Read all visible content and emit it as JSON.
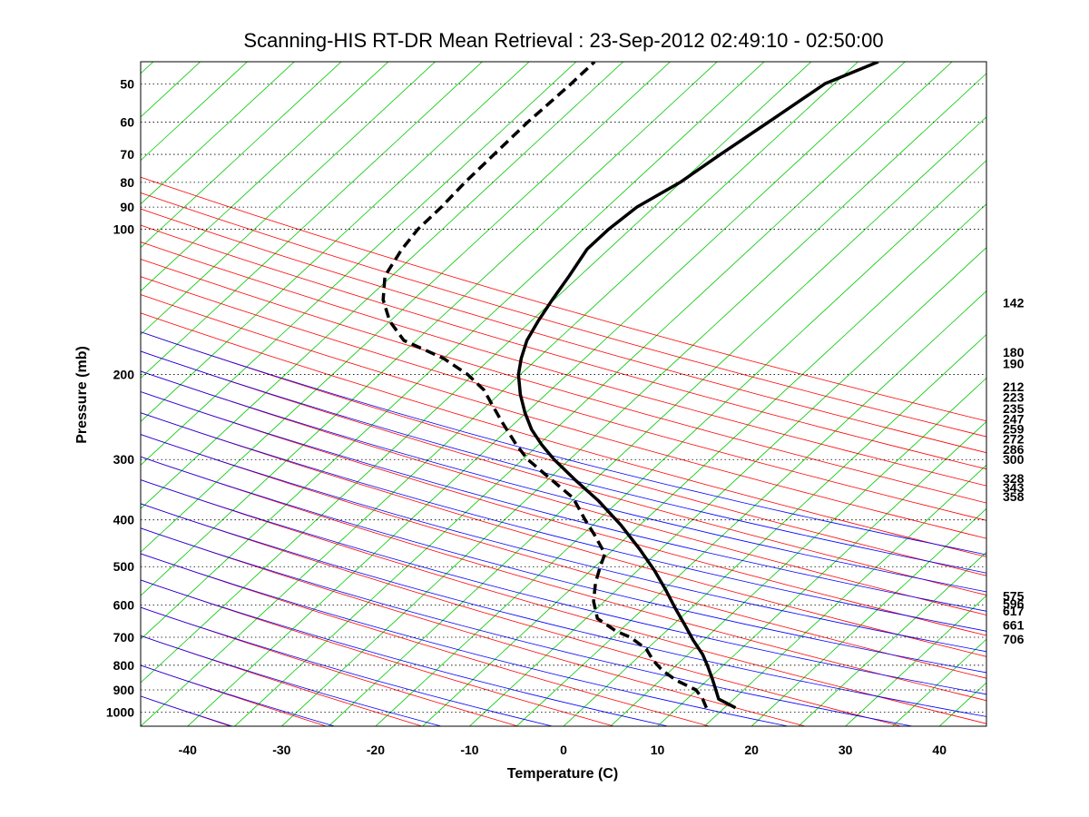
{
  "chart_data": {
    "type": "line",
    "title": "Scanning-HIS RT-DR Mean Retrieval : 23-Sep-2012 02:49:10 - 02:50:00",
    "xlabel": "Temperature (C)",
    "ylabel": "Pressure (mb)",
    "xlim": [
      -45,
      45
    ],
    "ylim": [
      1070,
      45
    ],
    "y_scale": "log",
    "grid": "horizontal dotted at labeled pressure ticks",
    "x_ticks": [
      -40,
      -30,
      -20,
      -10,
      0,
      10,
      20,
      30,
      40
    ],
    "y_ticks": [
      50,
      60,
      70,
      80,
      90,
      100,
      200,
      300,
      400,
      500,
      600,
      700,
      800,
      900,
      1000
    ],
    "right_labels": [
      142,
      180,
      190,
      212,
      223,
      235,
      247,
      259,
      272,
      286,
      300,
      328,
      343,
      358,
      575,
      596,
      617,
      661,
      706
    ],
    "background_colors": {
      "dry_adiabats": "#ff0000",
      "moist_adiabats": "#0000ff",
      "isotherms": "#00c800"
    },
    "series": [
      {
        "style": "solid",
        "color": "#000000",
        "points": [
          [
            18.3,
            980
          ],
          [
            16.5,
            940
          ],
          [
            16.2,
            900
          ],
          [
            15.8,
            850
          ],
          [
            15.3,
            800
          ],
          [
            14.8,
            760
          ],
          [
            13.8,
            710
          ],
          [
            12.9,
            660
          ],
          [
            11.9,
            610
          ],
          [
            10.9,
            560
          ],
          [
            9.7,
            510
          ],
          [
            8.1,
            460
          ],
          [
            6.1,
            410
          ],
          [
            3.7,
            365
          ],
          [
            1.2,
            330
          ],
          [
            -1.0,
            300
          ],
          [
            -2.3,
            280
          ],
          [
            -3.4,
            260
          ],
          [
            -4.1,
            240
          ],
          [
            -4.6,
            220
          ],
          [
            -4.8,
            200
          ],
          [
            -4.5,
            185
          ],
          [
            -3.9,
            170
          ],
          [
            -2.7,
            155
          ],
          [
            -1.2,
            140
          ],
          [
            0.6,
            125
          ],
          [
            2.5,
            110
          ],
          [
            4.8,
            100
          ],
          [
            7.8,
            90
          ],
          [
            12.4,
            80
          ],
          [
            16.7,
            70
          ],
          [
            21.8,
            60
          ],
          [
            27.8,
            50
          ],
          [
            33.5,
            45
          ]
        ]
      },
      {
        "style": "dashed",
        "color": "#000000",
        "points": [
          [
            15.2,
            980
          ],
          [
            14.8,
            940
          ],
          [
            14.1,
            900
          ],
          [
            12.0,
            860
          ],
          [
            10.5,
            820
          ],
          [
            9.5,
            780
          ],
          [
            8.8,
            740
          ],
          [
            7.1,
            700
          ],
          [
            5.6,
            680
          ],
          [
            3.6,
            640
          ],
          [
            3.2,
            590
          ],
          [
            3.4,
            540
          ],
          [
            3.9,
            500
          ],
          [
            4.4,
            470
          ],
          [
            3.3,
            430
          ],
          [
            2.3,
            400
          ],
          [
            1.0,
            360
          ],
          [
            -1.3,
            330
          ],
          [
            -3.8,
            300
          ],
          [
            -5.0,
            280
          ],
          [
            -6.6,
            250
          ],
          [
            -8.5,
            215
          ],
          [
            -10.2,
            200
          ],
          [
            -12.8,
            185
          ],
          [
            -17.0,
            170
          ],
          [
            -18.5,
            155
          ],
          [
            -19.2,
            140
          ],
          [
            -19.0,
            125
          ],
          [
            -17.2,
            110
          ],
          [
            -15.5,
            100
          ],
          [
            -13.0,
            90
          ],
          [
            -10.5,
            80
          ],
          [
            -7.4,
            70
          ],
          [
            -3.8,
            60
          ],
          [
            0.8,
            50
          ],
          [
            3.3,
            45
          ]
        ]
      }
    ]
  }
}
